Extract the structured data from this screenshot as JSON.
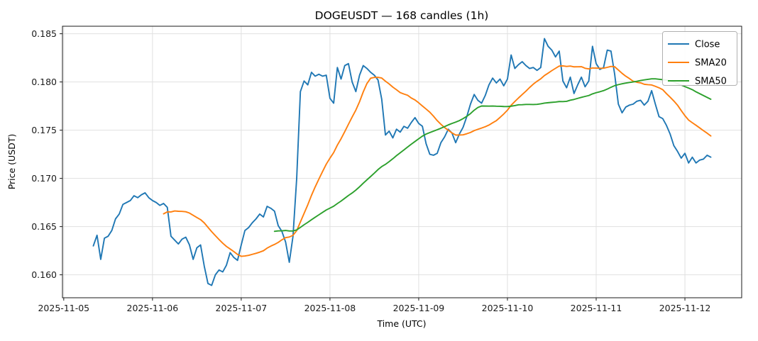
{
  "chart_data": {
    "type": "line",
    "title": "DOGEUSDT — 168 candles (1h)",
    "xlabel": "Time (UTC)",
    "ylabel": "Price (USDT)",
    "symbol": "DOGEUSDT",
    "candle_count": 168,
    "interval": "1h",
    "grid": true,
    "legend_position": "upper right",
    "y_ticks": [
      0.16,
      0.165,
      0.17,
      0.175,
      0.18,
      0.185
    ],
    "y_tick_labels": [
      "0.160",
      "0.165",
      "0.170",
      "0.175",
      "0.180",
      "0.185"
    ],
    "x_tick_labels": [
      "2025-11-05",
      "2025-11-06",
      "2025-11-07",
      "2025-11-08",
      "2025-11-09",
      "2025-11-10",
      "2025-11-11",
      "2025-11-12"
    ],
    "x_tick_indices": [
      -8,
      16,
      40,
      64,
      88,
      112,
      136,
      160
    ],
    "series": [
      {
        "name": "Close",
        "color": "#1f77b4",
        "kind": "raw"
      },
      {
        "name": "SMA20",
        "color": "#ff7f0e",
        "kind": "sma",
        "window": 20
      },
      {
        "name": "SMA50",
        "color": "#2ca02c",
        "kind": "sma",
        "window": 50
      }
    ],
    "close": [
      0.163,
      0.1641,
      0.1616,
      0.1638,
      0.164,
      0.1646,
      0.1658,
      0.1663,
      0.1673,
      0.1675,
      0.1677,
      0.1682,
      0.168,
      0.1683,
      0.1685,
      0.168,
      0.1677,
      0.1675,
      0.1672,
      0.1674,
      0.167,
      0.164,
      0.1636,
      0.1632,
      0.1637,
      0.1639,
      0.1631,
      0.1616,
      0.1628,
      0.1631,
      0.1609,
      0.1591,
      0.1589,
      0.16,
      0.1605,
      0.1603,
      0.161,
      0.1623,
      0.1618,
      0.1615,
      0.1631,
      0.1646,
      0.1649,
      0.1654,
      0.1658,
      0.1663,
      0.166,
      0.1671,
      0.1669,
      0.1666,
      0.1651,
      0.1645,
      0.1634,
      0.1613,
      0.164,
      0.17,
      0.179,
      0.1801,
      0.1797,
      0.181,
      0.1806,
      0.1808,
      0.1806,
      0.1807,
      0.1783,
      0.1778,
      0.1815,
      0.1803,
      0.1817,
      0.1819,
      0.18,
      0.179,
      0.1807,
      0.1817,
      0.1814,
      0.181,
      0.1807,
      0.1802,
      0.1782,
      0.1745,
      0.1749,
      0.1742,
      0.1751,
      0.1748,
      0.1754,
      0.1752,
      0.1758,
      0.1763,
      0.1757,
      0.1754,
      0.1736,
      0.1725,
      0.1724,
      0.1726,
      0.1737,
      0.1743,
      0.1751,
      0.1747,
      0.1737,
      0.1746,
      0.1753,
      0.1764,
      0.1777,
      0.1787,
      0.1781,
      0.1778,
      0.1786,
      0.1797,
      0.1804,
      0.1799,
      0.1803,
      0.1796,
      0.1803,
      0.1828,
      0.1814,
      0.1818,
      0.1821,
      0.1817,
      0.1814,
      0.1815,
      0.1812,
      0.1815,
      0.1845,
      0.1837,
      0.1833,
      0.1826,
      0.1832,
      0.1801,
      0.1794,
      0.1805,
      0.1788,
      0.1797,
      0.1805,
      0.1795,
      0.1801,
      0.1837,
      0.1819,
      0.1813,
      0.1815,
      0.1833,
      0.1832,
      0.1808,
      0.1777,
      0.1768,
      0.1774,
      0.1776,
      0.1777,
      0.178,
      0.1781,
      0.1776,
      0.178,
      0.1791,
      0.1777,
      0.1764,
      0.1762,
      0.1755,
      0.1746,
      0.1734,
      0.1728,
      0.1721,
      0.1726,
      0.1716,
      0.1722,
      0.1716,
      0.1719,
      0.172,
      0.1724,
      0.1722
    ]
  }
}
